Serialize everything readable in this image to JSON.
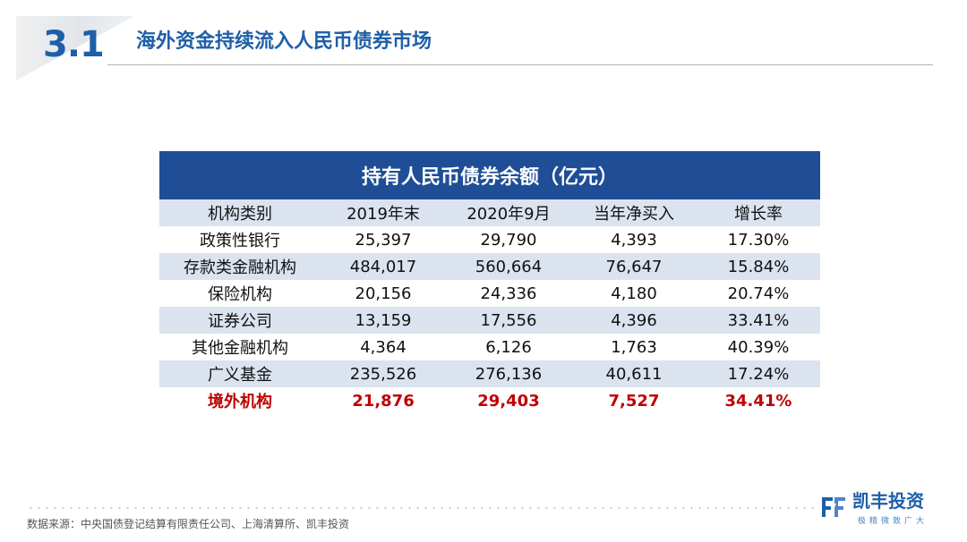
{
  "header": {
    "section_number": "3.1",
    "title": "海外资金持续流入人民币债券市场"
  },
  "table": {
    "title": "持有人民币债券余额（亿元）",
    "columns": [
      "机构类别",
      "2019年末",
      "2020年9月",
      "当年净买入",
      "增长率"
    ],
    "rows": [
      [
        "政策性银行",
        "25,397",
        "29,790",
        "4,393",
        "17.30%"
      ],
      [
        "存款类金融机构",
        "484,017",
        "560,664",
        "76,647",
        "15.84%"
      ],
      [
        "保险机构",
        "20,156",
        "24,336",
        "4,180",
        "20.74%"
      ],
      [
        "证券公司",
        "13,159",
        "17,556",
        "4,396",
        "33.41%"
      ],
      [
        "其他金融机构",
        "4,364",
        "6,126",
        "1,763",
        "40.39%"
      ],
      [
        "广义基金",
        "235,526",
        "276,136",
        "40,611",
        "17.24%"
      ],
      [
        "境外机构",
        "21,876",
        "29,403",
        "7,527",
        "34.41%"
      ]
    ],
    "highlight_row_index": 6,
    "header_color": "#1f4e96",
    "stripe_color": "#dbe3ef",
    "highlight_color": "#c00000"
  },
  "footer": {
    "source": "数据来源：中央国债登记结算有限责任公司、上海清算所、凯丰投资",
    "logo_name": "凯丰投资",
    "logo_slogan": "极精微致广大"
  },
  "brand_color": "#1f5fa8"
}
